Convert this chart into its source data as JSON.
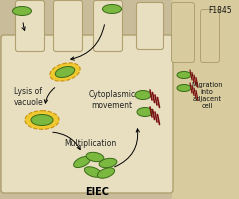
{
  "fig_bg": "#c8bc9a",
  "cell_color": "#e8dfc0",
  "cell_edge_color": "#b0a070",
  "right_panel_color": "#d8cc9e",
  "bacteria_fill": "#7ab840",
  "bacteria_edge": "#3a6a18",
  "vacuole_fill": "#f0c830",
  "vacuole_edge": "#c89010",
  "actin_color": "#7a1010",
  "text_color": "#111111",
  "label_color": "#222222",
  "title_text": "F1845",
  "eiec_text": "EIEC",
  "lysis_text": "Lysis of\nvacuole",
  "cyto_text": "Cytoplasmic\nmovement",
  "multi_text": "Multiplication",
  "migration_text": "Migration\ninto\nadjacent\ncell"
}
